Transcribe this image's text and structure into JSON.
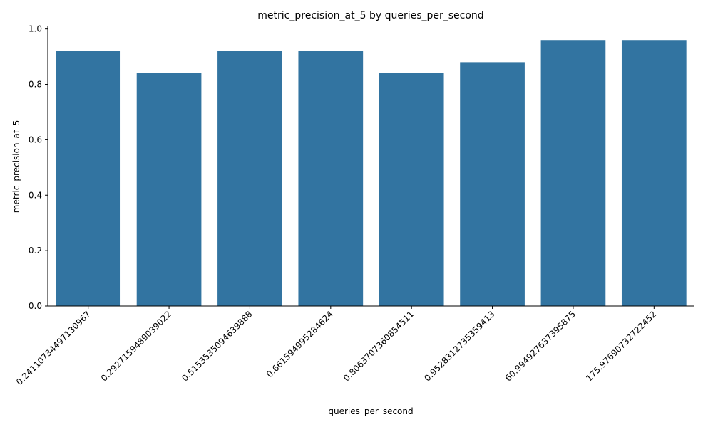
{
  "chart_data": {
    "type": "bar",
    "title": "metric_precision_at_5 by queries_per_second",
    "xlabel": "queries_per_second",
    "ylabel": "metric_precision_at_5",
    "categories": [
      "0.2411073449713096​7",
      "0.292715948903902​2",
      "0.515353509463988​8",
      "0.6615949952846​24",
      "0.806370736085451​1",
      "0.952831273535941​3",
      "60.9949276373958​75",
      "175.976907327224​52"
    ],
    "values": [
      0.92,
      0.84,
      0.92,
      0.92,
      0.84,
      0.88,
      0.96,
      0.96
    ],
    "ylim": [
      0,
      1.0
    ],
    "yticks": [
      0.0,
      0.2,
      0.4,
      0.6,
      0.8,
      1.0
    ],
    "ytick_labels": [
      "0.0",
      "0.2",
      "0.4",
      "0.6",
      "0.8",
      "1.0"
    ],
    "grid": false,
    "bar_color": "#3274a1"
  }
}
